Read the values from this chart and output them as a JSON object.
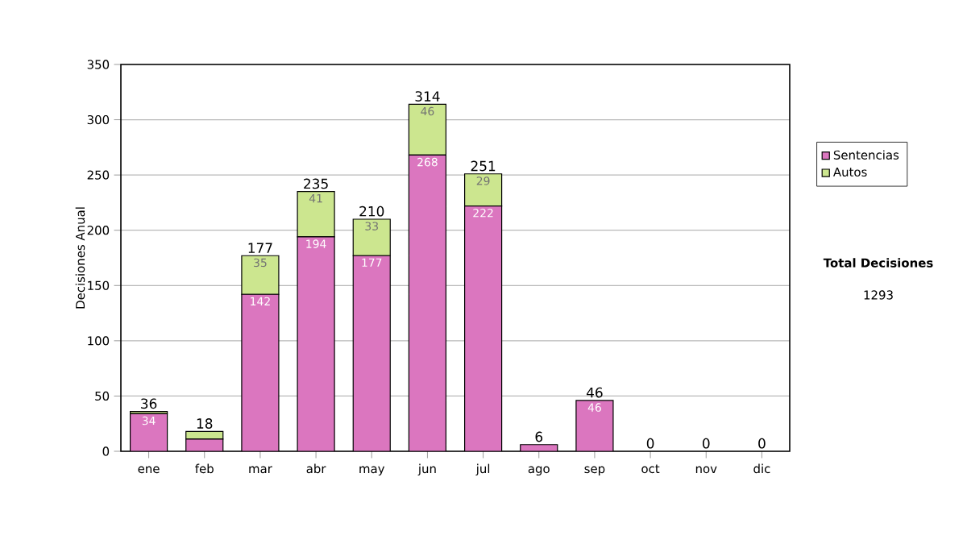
{
  "chart_data": {
    "type": "bar",
    "stacked": true,
    "ylabel": "Decisiones Anual",
    "categories": [
      "ene",
      "feb",
      "mar",
      "abr",
      "may",
      "jun",
      "jul",
      "ago",
      "sep",
      "oct",
      "nov",
      "dic"
    ],
    "series": [
      {
        "name": "Sentencias",
        "color": "#db76bf",
        "values": [
          34,
          11,
          142,
          194,
          177,
          268,
          222,
          6,
          46,
          0,
          0,
          0
        ],
        "value_labels": [
          "34",
          null,
          "142",
          "194",
          "177",
          "268",
          "222",
          null,
          "46",
          null,
          null,
          null
        ]
      },
      {
        "name": "Autos",
        "color": "#cce68f",
        "values": [
          2,
          7,
          35,
          41,
          33,
          46,
          29,
          0,
          0,
          0,
          0,
          0
        ],
        "value_labels": [
          null,
          null,
          "35",
          "41",
          "33",
          "46",
          "29",
          null,
          null,
          null,
          null,
          null
        ]
      }
    ],
    "totals": [
      "36",
      "18",
      "177",
      "235",
      "210",
      "314",
      "251",
      "6",
      "46",
      "0",
      "0",
      "0"
    ],
    "ylim": [
      0,
      350
    ],
    "yticks": [
      0,
      50,
      100,
      150,
      200,
      250,
      300,
      350
    ],
    "grid": "y",
    "legend": "right",
    "annotations": [
      "**Total Decisiones**",
      "1293"
    ]
  }
}
